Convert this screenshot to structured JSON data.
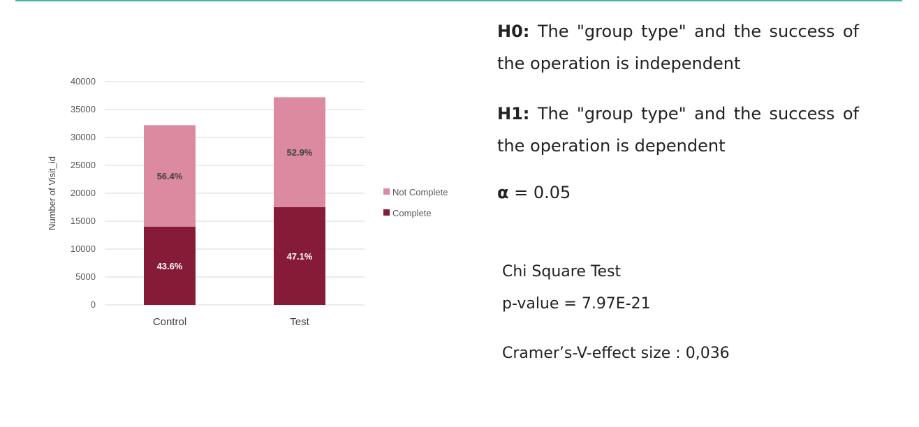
{
  "chart_data": {
    "type": "bar",
    "stacked": true,
    "categories": [
      "Control",
      "Test"
    ],
    "series": [
      {
        "name": "Complete",
        "color": "#861b38",
        "values": [
          14000,
          17500
        ],
        "labels": [
          "43.6%",
          "47.1%"
        ]
      },
      {
        "name": "Not Complete",
        "color": "#db8a9f",
        "values": [
          18200,
          19700
        ],
        "labels": [
          "56.4%",
          "52.9%"
        ]
      }
    ],
    "ylabel": "Number of  Visit_id",
    "ylim": [
      0,
      40000
    ],
    "yticks": [
      0,
      5000,
      10000,
      15000,
      20000,
      25000,
      30000,
      35000,
      40000
    ],
    "grid": true,
    "legend_position": "right"
  },
  "hypotheses": {
    "h0_label": "H0:",
    "h0_text": " The \"group type\" and the success of the operation is independent",
    "h1_label": "H1:",
    "h1_text": " The \"group type\" and the success of the operation is dependent",
    "alpha_symbol": "α",
    "alpha_text": " = 0.05"
  },
  "stats": {
    "test_name": "Chi Square Test",
    "p_value": "p-value = 7.97E-21",
    "effect_size": "Cramer’s-V-effect size : 0,036"
  }
}
